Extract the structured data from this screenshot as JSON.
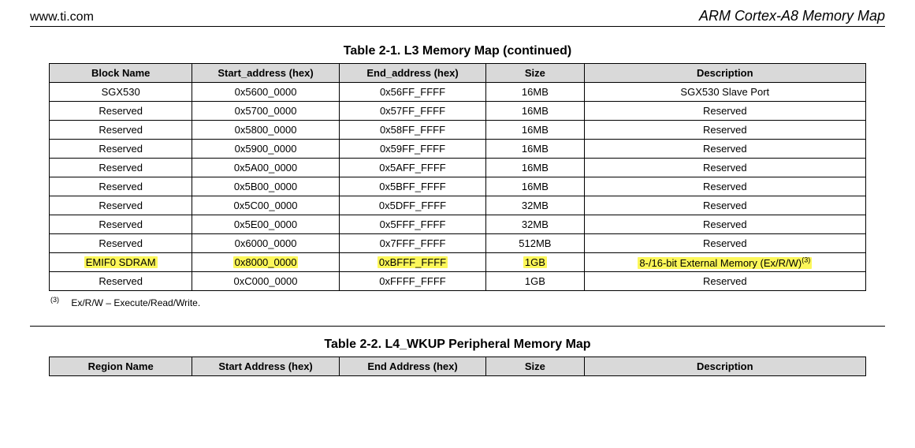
{
  "header": {
    "left": "www.ti.com",
    "right": "ARM Cortex-A8 Memory Map"
  },
  "table1": {
    "title": "Table 2-1. L3 Memory Map (continued)",
    "columns": [
      "Block Name",
      "Start_address (hex)",
      "End_address (hex)",
      "Size",
      "Description"
    ],
    "col_widths_pct": [
      17.5,
      18,
      18,
      12,
      34.5
    ],
    "header_bg": "#d9d9d9",
    "highlight_bg": "#fcf759",
    "rows": [
      {
        "cells": [
          "SGX530",
          "0x5600_0000",
          "0x56FF_FFFF",
          "16MB",
          "SGX530 Slave Port"
        ],
        "highlight": false
      },
      {
        "cells": [
          "Reserved",
          "0x5700_0000",
          "0x57FF_FFFF",
          "16MB",
          "Reserved"
        ],
        "highlight": false
      },
      {
        "cells": [
          "Reserved",
          "0x5800_0000",
          "0x58FF_FFFF",
          "16MB",
          "Reserved"
        ],
        "highlight": false
      },
      {
        "cells": [
          "Reserved",
          "0x5900_0000",
          "0x59FF_FFFF",
          "16MB",
          "Reserved"
        ],
        "highlight": false
      },
      {
        "cells": [
          "Reserved",
          "0x5A00_0000",
          "0x5AFF_FFFF",
          "16MB",
          "Reserved"
        ],
        "highlight": false
      },
      {
        "cells": [
          "Reserved",
          "0x5B00_0000",
          "0x5BFF_FFFF",
          "16MB",
          "Reserved"
        ],
        "highlight": false
      },
      {
        "cells": [
          "Reserved",
          "0x5C00_0000",
          "0x5DFF_FFFF",
          "32MB",
          "Reserved"
        ],
        "highlight": false
      },
      {
        "cells": [
          "Reserved",
          "0x5E00_0000",
          "0x5FFF_FFFF",
          "32MB",
          "Reserved"
        ],
        "highlight": false
      },
      {
        "cells": [
          "Reserved",
          "0x6000_0000",
          "0x7FFF_FFFF",
          "512MB",
          "Reserved"
        ],
        "highlight": false
      },
      {
        "cells": [
          "EMIF0 SDRAM",
          "0x8000_0000",
          "0xBFFF_FFFF",
          "1GB",
          "8-/16-bit External Memory (Ex/R/W)"
        ],
        "highlight": true,
        "desc_sup": "(3)",
        "tall": true
      },
      {
        "cells": [
          "Reserved",
          "0xC000_0000",
          "0xFFFF_FFFF",
          "1GB",
          "Reserved"
        ],
        "highlight": false
      }
    ]
  },
  "footnote": {
    "num": "(3)",
    "text": "Ex/R/W – Execute/Read/Write."
  },
  "table2": {
    "title": "Table 2-2. L4_WKUP Peripheral Memory Map",
    "columns": [
      "Region Name",
      "Start Address (hex)",
      "End Address (hex)",
      "Size",
      "Description"
    ]
  },
  "style": {
    "body_font": "Arial",
    "title_fontsize_pt": 16,
    "cell_fontsize_pt": 13,
    "border_color": "#000000",
    "background": "#ffffff"
  }
}
